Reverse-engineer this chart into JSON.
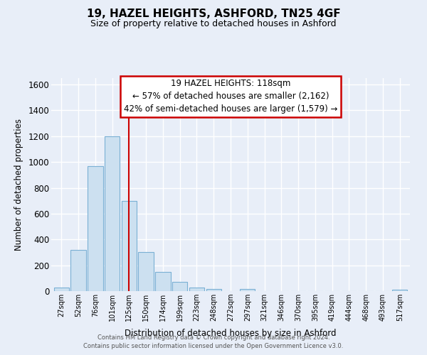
{
  "title": "19, HAZEL HEIGHTS, ASHFORD, TN25 4GF",
  "subtitle": "Size of property relative to detached houses in Ashford",
  "xlabel": "Distribution of detached houses by size in Ashford",
  "ylabel": "Number of detached properties",
  "bar_labels": [
    "27sqm",
    "52sqm",
    "76sqm",
    "101sqm",
    "125sqm",
    "150sqm",
    "174sqm",
    "199sqm",
    "223sqm",
    "248sqm",
    "272sqm",
    "297sqm",
    "321sqm",
    "346sqm",
    "370sqm",
    "395sqm",
    "419sqm",
    "444sqm",
    "468sqm",
    "493sqm",
    "517sqm"
  ],
  "bar_values": [
    30,
    320,
    970,
    1200,
    700,
    305,
    150,
    70,
    30,
    18,
    0,
    15,
    0,
    0,
    0,
    0,
    0,
    0,
    0,
    0,
    12
  ],
  "bar_face_color": "#cce0f0",
  "bar_edge_color": "#7ab0d4",
  "highlight_x_label": "125sqm",
  "highlight_line_color": "#cc0000",
  "annotation_title": "19 HAZEL HEIGHTS: 118sqm",
  "annotation_line1": "← 57% of detached houses are smaller (2,162)",
  "annotation_line2": "42% of semi-detached houses are larger (1,579) →",
  "annotation_box_facecolor": "#ffffff",
  "annotation_box_edgecolor": "#cc0000",
  "ylim": [
    0,
    1650
  ],
  "yticks": [
    0,
    200,
    400,
    600,
    800,
    1000,
    1200,
    1400,
    1600
  ],
  "background_color": "#e8eef8",
  "plot_bg_color": "#e8eef8",
  "grid_color": "#ffffff",
  "footer_line1": "Contains HM Land Registry data © Crown copyright and database right 2024.",
  "footer_line2": "Contains public sector information licensed under the Open Government Licence v3.0."
}
